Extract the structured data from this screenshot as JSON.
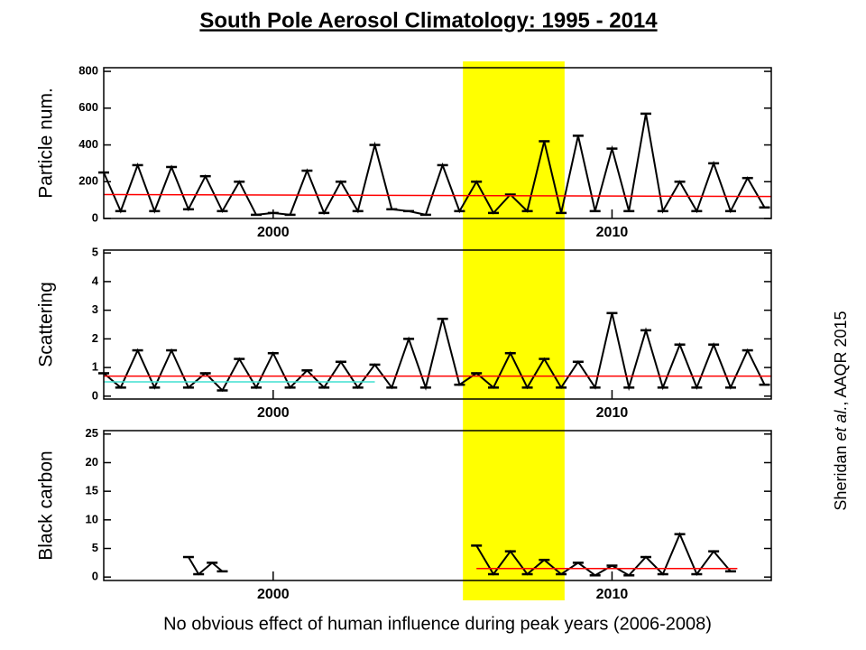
{
  "title": "South Pole Aerosol Climatology: 1995 - 2014",
  "caption": "No obvious effect of human influence during peak years (2006-2008)",
  "citation": {
    "prefix": "Sheridan ",
    "italic": "et al.",
    "suffix": ", AAQR 2015"
  },
  "highlight": {
    "xlim": [
      2005.6,
      2008.6
    ],
    "color": "#ffff00"
  },
  "chart_data": [
    {
      "type": "line",
      "ylabel": "Particle num.",
      "xlim": [
        1995,
        2014.7
      ],
      "xticks": [
        2000,
        2010
      ],
      "ylim": [
        0,
        820
      ],
      "yticks": [
        0,
        200,
        400,
        600,
        800
      ],
      "series": [
        {
          "color": "#000000",
          "x": [
            1995.0,
            1995.5,
            1996.0,
            1996.5,
            1997.0,
            1997.5,
            1998.0,
            1998.5,
            1999.0,
            1999.5,
            2000.0,
            2000.5,
            2001.0,
            2001.5,
            2002.0,
            2002.5,
            2003.0,
            2003.5,
            2004.0,
            2004.5,
            2005.0,
            2005.5,
            2006.0,
            2006.5,
            2007.0,
            2007.5,
            2008.0,
            2008.5,
            2009.0,
            2009.5,
            2010.0,
            2010.5,
            2011.0,
            2011.5,
            2012.0,
            2012.5,
            2013.0,
            2013.5,
            2014.0,
            2014.5
          ],
          "values": [
            250,
            40,
            290,
            40,
            280,
            50,
            230,
            40,
            200,
            20,
            30,
            20,
            260,
            30,
            200,
            40,
            400,
            50,
            40,
            20,
            290,
            40,
            200,
            30,
            130,
            40,
            420,
            30,
            450,
            40,
            380,
            40,
            570,
            40,
            200,
            40,
            300,
            40,
            220,
            60
          ]
        },
        {
          "color": "#ff0000",
          "x": [
            1995,
            2014.7
          ],
          "values": [
            130,
            120
          ]
        }
      ]
    },
    {
      "type": "line",
      "ylabel": "Scattering",
      "xlim": [
        1995,
        2014.7
      ],
      "xticks": [
        2000,
        2010
      ],
      "ylim": [
        -0.1,
        5.1
      ],
      "yticks": [
        0,
        1,
        2,
        3,
        4,
        5
      ],
      "series": [
        {
          "color": "#000000",
          "x": [
            1995.0,
            1995.5,
            1996.0,
            1996.5,
            1997.0,
            1997.5,
            1998.0,
            1998.5,
            1999.0,
            1999.5,
            2000.0,
            2000.5,
            2001.0,
            2001.5,
            2002.0,
            2002.5,
            2003.0,
            2003.5,
            2004.0,
            2004.5,
            2005.0,
            2005.5,
            2006.0,
            2006.5,
            2007.0,
            2007.5,
            2008.0,
            2008.5,
            2009.0,
            2009.5,
            2010.0,
            2010.5,
            2011.0,
            2011.5,
            2012.0,
            2012.5,
            2013.0,
            2013.5,
            2014.0,
            2014.5
          ],
          "values": [
            0.8,
            0.3,
            1.6,
            0.3,
            1.6,
            0.3,
            0.8,
            0.2,
            1.3,
            0.3,
            1.5,
            0.3,
            0.9,
            0.3,
            1.2,
            0.3,
            1.1,
            0.3,
            2.0,
            0.3,
            2.7,
            0.4,
            0.8,
            0.3,
            1.5,
            0.3,
            1.3,
            0.3,
            1.2,
            0.3,
            2.9,
            0.3,
            2.3,
            0.3,
            1.8,
            0.3,
            1.8,
            0.3,
            1.6,
            0.4
          ]
        },
        {
          "color": "#40e0d0",
          "x": [
            1995,
            2003
          ],
          "values": [
            0.5,
            0.5
          ]
        },
        {
          "color": "#ff0000",
          "x": [
            1995,
            2014.7
          ],
          "values": [
            0.7,
            0.7
          ]
        }
      ]
    },
    {
      "type": "line",
      "ylabel": "Black carbon",
      "xlim": [
        1995,
        2014.7
      ],
      "xticks": [
        2000,
        2010
      ],
      "ylim": [
        -0.6,
        25.6
      ],
      "yticks": [
        0,
        5,
        10,
        15,
        20,
        25
      ],
      "series": [
        {
          "color": "#000000",
          "x": [
            1997.5,
            1997.8,
            1998.2,
            1998.5,
            2002.0,
            2006.0,
            2006.5,
            2007.0,
            2007.5,
            2008.0,
            2008.5,
            2009.0,
            2009.5,
            2010.0,
            2010.5,
            2011.0,
            2011.5,
            2012.0,
            2012.5,
            2013.0,
            2013.5
          ],
          "values": [
            3.5,
            0.5,
            2.5,
            1,
            null,
            5.5,
            0.5,
            4.5,
            0.5,
            3,
            0.5,
            2.5,
            0.3,
            2,
            0.3,
            3.5,
            0.5,
            7.5,
            0.5,
            4.5,
            1
          ]
        },
        {
          "color": "#ff0000",
          "x": [
            2006,
            2013.7
          ],
          "values": [
            1.5,
            1.5
          ]
        }
      ]
    }
  ]
}
